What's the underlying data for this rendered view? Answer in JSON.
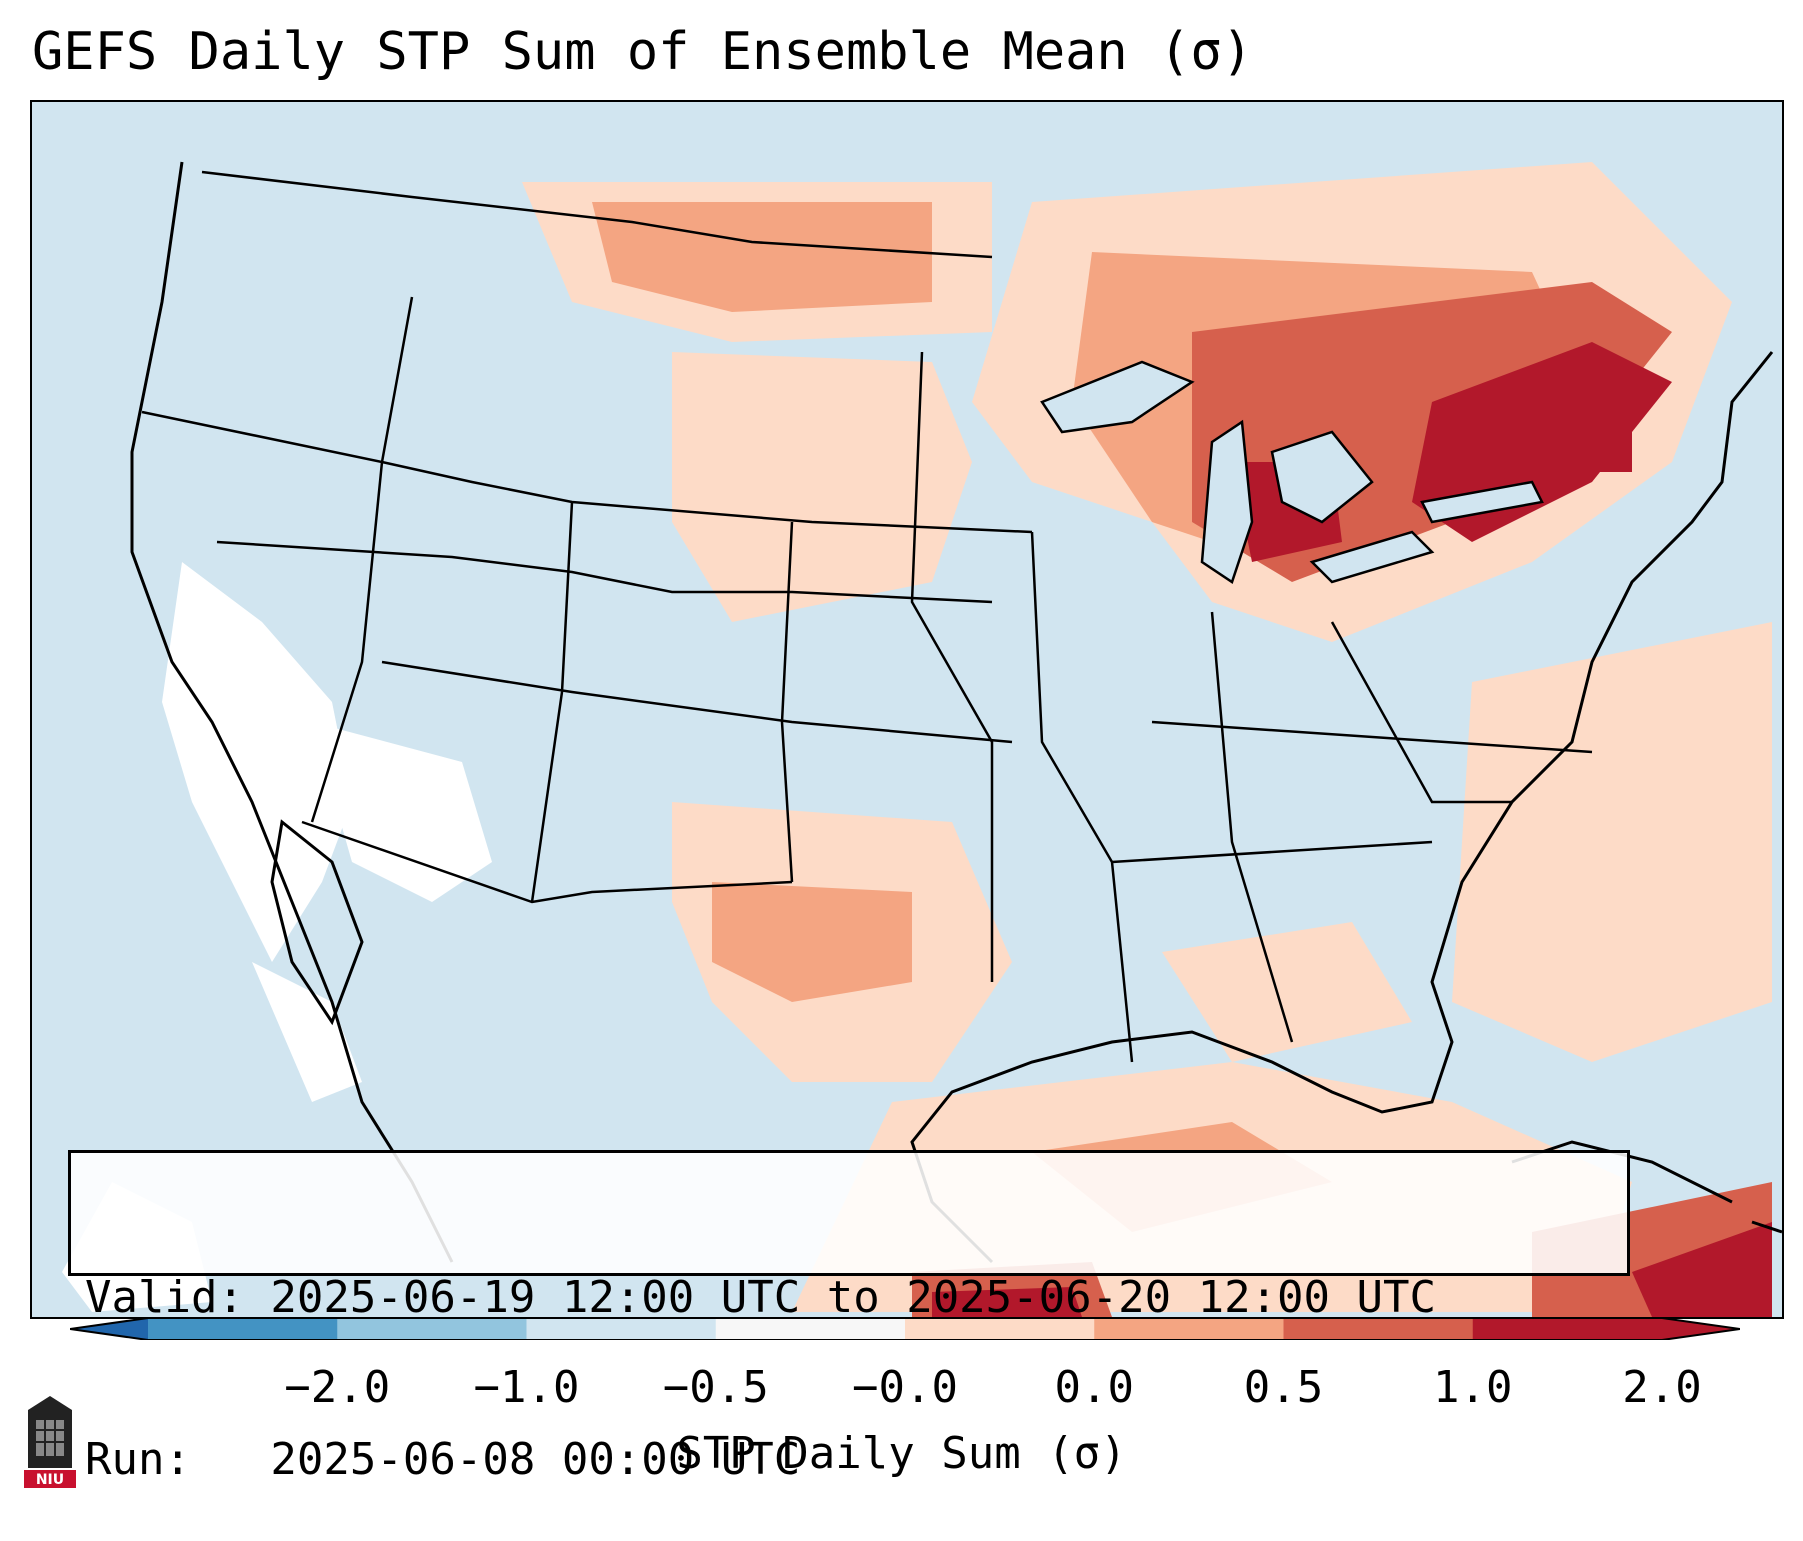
{
  "title": "GEFS Daily STP Sum of Ensemble Mean (σ)",
  "info": {
    "valid_line": "Valid: 2025-06-19 12:00 UTC to 2025-06-20 12:00 UTC",
    "run_line": "Run:   2025-06-08 00:00 UTC"
  },
  "colorbar": {
    "label": "STP Daily Sum (σ)",
    "ticks": [
      "−2.0",
      "−1.0",
      "−0.5",
      "−0.0",
      "0.0",
      "0.5",
      "1.0",
      "2.0"
    ],
    "colors": [
      "#4393c3",
      "#92c5de",
      "#d1e5f0",
      "#f7f7f7",
      "#fddbc7",
      "#f4a582",
      "#d6604d",
      "#b2182b"
    ],
    "extend_low_color": "#2166ac",
    "extend_high_color": "#b2182b"
  },
  "logo": {
    "text": "NIU",
    "color": "#c8102e"
  },
  "map": {
    "background_color": "#d1e5f0",
    "field_regions": [
      {
        "region": "Northeast / Great Lakes",
        "level": "high (1.0 to 2.0)"
      },
      {
        "region": "Southern Plains / Texas",
        "level": "low to moderate (0.0 to 1.0)"
      },
      {
        "region": "Northern Plains",
        "level": "low to moderate (0.0 to 1.0)"
      },
      {
        "region": "Southwest / Baja",
        "level": "near zero (-0.0 to 0.0)"
      },
      {
        "region": "Caribbean",
        "level": "high (1.0 to 2.0)"
      }
    ]
  }
}
